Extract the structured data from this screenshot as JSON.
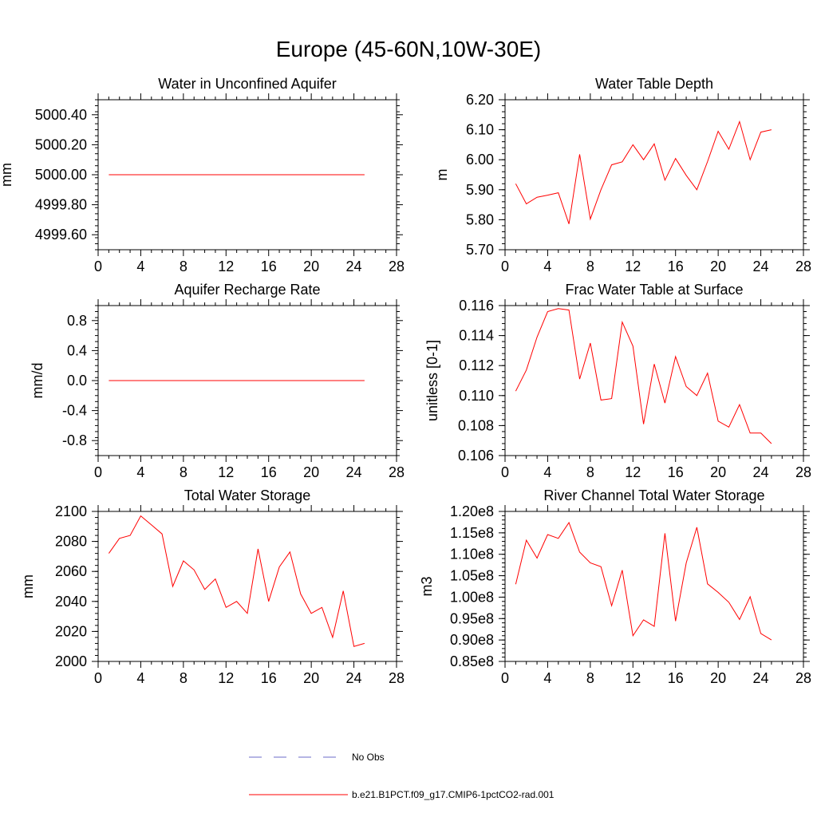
{
  "page": {
    "title": "Europe (45-60N,10W-30E)"
  },
  "legend": {
    "entries": [
      {
        "label": "No Obs",
        "color": "#6b6bc8",
        "style": "dashed"
      },
      {
        "label": "b.e21.B1PCT.f09_g17.CMIP6-1pctCO2-rad.001",
        "color": "#ff0000",
        "style": "solid"
      }
    ]
  },
  "chart_data": [
    {
      "type": "line",
      "title": "Water in Unconfined Aquifer",
      "xlabel": "",
      "ylabel": "mm",
      "xlim": [
        0,
        28
      ],
      "ylim": [
        4999.5,
        5000.5
      ],
      "xticks": [
        0,
        4,
        8,
        12,
        16,
        20,
        24,
        28
      ],
      "xtick_labels": [
        "0",
        "4",
        "8",
        "12",
        "16",
        "20",
        "24",
        "28"
      ],
      "yticks": [
        4999.6,
        4999.8,
        5000.0,
        5000.2,
        5000.4
      ],
      "ytick_labels": [
        "4999.60",
        "4999.80",
        "5000.00",
        "5000.20",
        "5000.40"
      ],
      "series": [
        {
          "name": "b.e21.B1PCT.f09_g17.CMIP6-1pctCO2-rad.001",
          "color": "#ff0000",
          "x": [
            1,
            2,
            3,
            4,
            5,
            6,
            7,
            8,
            9,
            10,
            11,
            12,
            13,
            14,
            15,
            16,
            17,
            18,
            19,
            20,
            21,
            22,
            23,
            24,
            25
          ],
          "values": [
            5000,
            5000,
            5000,
            5000,
            5000,
            5000,
            5000,
            5000,
            5000,
            5000,
            5000,
            5000,
            5000,
            5000,
            5000,
            5000,
            5000,
            5000,
            5000,
            5000,
            5000,
            5000,
            5000,
            5000,
            5000
          ]
        }
      ]
    },
    {
      "type": "line",
      "title": "Water Table Depth",
      "xlabel": "",
      "ylabel": "m",
      "xlim": [
        0,
        28
      ],
      "ylim": [
        5.7,
        6.2
      ],
      "xticks": [
        0,
        4,
        8,
        12,
        16,
        20,
        24,
        28
      ],
      "xtick_labels": [
        "0",
        "4",
        "8",
        "12",
        "16",
        "20",
        "24",
        "28"
      ],
      "yticks": [
        5.7,
        5.8,
        5.9,
        6.0,
        6.1,
        6.2
      ],
      "ytick_labels": [
        "5.70",
        "5.80",
        "5.90",
        "6.00",
        "6.10",
        "6.20"
      ],
      "series": [
        {
          "name": "b.e21.B1PCT.f09_g17.CMIP6-1pctCO2-rad.001",
          "color": "#ff0000",
          "x": [
            1,
            2,
            3,
            4,
            5,
            6,
            7,
            8,
            9,
            10,
            11,
            12,
            13,
            14,
            15,
            16,
            17,
            18,
            19,
            20,
            21,
            22,
            23,
            24,
            25
          ],
          "values": [
            5.92,
            5.853,
            5.875,
            5.882,
            5.89,
            5.786,
            6.018,
            5.802,
            5.9,
            5.983,
            5.993,
            6.05,
            6.0,
            6.053,
            5.932,
            6.004,
            5.948,
            5.9,
            5.994,
            6.095,
            6.035,
            6.127,
            6.0,
            6.092,
            6.1
          ]
        }
      ]
    },
    {
      "type": "line",
      "title": "Aquifer Recharge Rate",
      "xlabel": "",
      "ylabel": "mm/d",
      "xlim": [
        0,
        28
      ],
      "ylim": [
        -1.0,
        1.0
      ],
      "xticks": [
        0,
        4,
        8,
        12,
        16,
        20,
        24,
        28
      ],
      "xtick_labels": [
        "0",
        "4",
        "8",
        "12",
        "16",
        "20",
        "24",
        "28"
      ],
      "yticks": [
        -0.8,
        -0.4,
        0.0,
        0.4,
        0.8
      ],
      "ytick_labels": [
        "-0.8",
        "-0.4",
        "0.0",
        "0.4",
        "0.8"
      ],
      "series": [
        {
          "name": "b.e21.B1PCT.f09_g17.CMIP6-1pctCO2-rad.001",
          "color": "#ff0000",
          "x": [
            1,
            2,
            3,
            4,
            5,
            6,
            7,
            8,
            9,
            10,
            11,
            12,
            13,
            14,
            15,
            16,
            17,
            18,
            19,
            20,
            21,
            22,
            23,
            24,
            25
          ],
          "values": [
            0,
            0,
            0,
            0,
            0,
            0,
            0,
            0,
            0,
            0,
            0,
            0,
            0,
            0,
            0,
            0,
            0,
            0,
            0,
            0,
            0,
            0,
            0,
            0,
            0
          ]
        }
      ]
    },
    {
      "type": "line",
      "title": "Frac Water Table at Surface",
      "xlabel": "",
      "ylabel": "unitless [0-1]",
      "xlim": [
        0,
        28
      ],
      "ylim": [
        0.106,
        0.116
      ],
      "xticks": [
        0,
        4,
        8,
        12,
        16,
        20,
        24,
        28
      ],
      "xtick_labels": [
        "0",
        "4",
        "8",
        "12",
        "16",
        "20",
        "24",
        "28"
      ],
      "yticks": [
        0.106,
        0.108,
        0.11,
        0.112,
        0.114,
        0.116
      ],
      "ytick_labels": [
        "0.106",
        "0.108",
        "0.110",
        "0.112",
        "0.114",
        "0.116"
      ],
      "series": [
        {
          "name": "b.e21.B1PCT.f09_g17.CMIP6-1pctCO2-rad.001",
          "color": "#ff0000",
          "x": [
            1,
            2,
            3,
            4,
            5,
            6,
            7,
            8,
            9,
            10,
            11,
            12,
            13,
            14,
            15,
            16,
            17,
            18,
            19,
            20,
            21,
            22,
            23,
            24,
            25
          ],
          "values": [
            0.1103,
            0.1117,
            0.1139,
            0.1156,
            0.1158,
            0.1157,
            0.1111,
            0.1135,
            0.1097,
            0.1098,
            0.1149,
            0.1133,
            0.1081,
            0.1121,
            0.1095,
            0.1126,
            0.1106,
            0.11,
            0.1115,
            0.1083,
            0.1079,
            0.1094,
            0.1075,
            0.1075,
            0.1068
          ]
        }
      ]
    },
    {
      "type": "line",
      "title": "Total Water Storage",
      "xlabel": "",
      "ylabel": "mm",
      "xlim": [
        0,
        28
      ],
      "ylim": [
        2000,
        2100
      ],
      "xticks": [
        0,
        4,
        8,
        12,
        16,
        20,
        24,
        28
      ],
      "xtick_labels": [
        "0",
        "4",
        "8",
        "12",
        "16",
        "20",
        "24",
        "28"
      ],
      "yticks": [
        2000,
        2020,
        2040,
        2060,
        2080,
        2100
      ],
      "ytick_labels": [
        "2000",
        "2020",
        "2040",
        "2060",
        "2080",
        "2100"
      ],
      "series": [
        {
          "name": "b.e21.B1PCT.f09_g17.CMIP6-1pctCO2-rad.001",
          "color": "#ff0000",
          "x": [
            1,
            2,
            3,
            4,
            5,
            6,
            7,
            8,
            9,
            10,
            11,
            12,
            13,
            14,
            15,
            16,
            17,
            18,
            19,
            20,
            21,
            22,
            23,
            24,
            25
          ],
          "values": [
            2072,
            2082,
            2084,
            2097,
            2091,
            2085,
            2050,
            2067,
            2061,
            2048,
            2055,
            2036,
            2040,
            2032,
            2075,
            2040,
            2063,
            2073,
            2045,
            2032,
            2036,
            2016,
            2047,
            2010,
            2012
          ]
        }
      ]
    },
    {
      "type": "line",
      "title": "River Channel Total Water Storage",
      "xlabel": "",
      "ylabel": "m3",
      "xlim": [
        0,
        28
      ],
      "ylim": [
        85000000.0,
        120000000.0
      ],
      "xticks": [
        0,
        4,
        8,
        12,
        16,
        20,
        24,
        28
      ],
      "xtick_labels": [
        "0",
        "4",
        "8",
        "12",
        "16",
        "20",
        "24",
        "28"
      ],
      "yticks": [
        85000000.0,
        90000000.0,
        95000000.0,
        100000000.0,
        105000000.0,
        110000000.0,
        115000000.0,
        120000000.0
      ],
      "ytick_labels": [
        "0.85e8",
        "0.90e8",
        "0.95e8",
        "1.00e8",
        "1.05e8",
        "1.10e8",
        "1.15e8",
        "1.20e8"
      ],
      "series": [
        {
          "name": "b.e21.B1PCT.f09_g17.CMIP6-1pctCO2-rad.001",
          "color": "#ff0000",
          "x": [
            1,
            2,
            3,
            4,
            5,
            6,
            7,
            8,
            9,
            10,
            11,
            12,
            13,
            14,
            15,
            16,
            17,
            18,
            19,
            20,
            21,
            22,
            23,
            24,
            25
          ],
          "values": [
            103000000.0,
            113300000.0,
            109100000.0,
            114600000.0,
            113700000.0,
            117400000.0,
            110500000.0,
            108000000.0,
            107100000.0,
            98000000.0,
            106300000.0,
            91000000.0,
            94700000.0,
            93200000.0,
            114900000.0,
            94400000.0,
            108000000.0,
            116300000.0,
            103100000.0,
            101100000.0,
            98800000.0,
            94800000.0,
            100100000.0,
            91500000.0,
            90000000.0
          ]
        }
      ]
    }
  ]
}
